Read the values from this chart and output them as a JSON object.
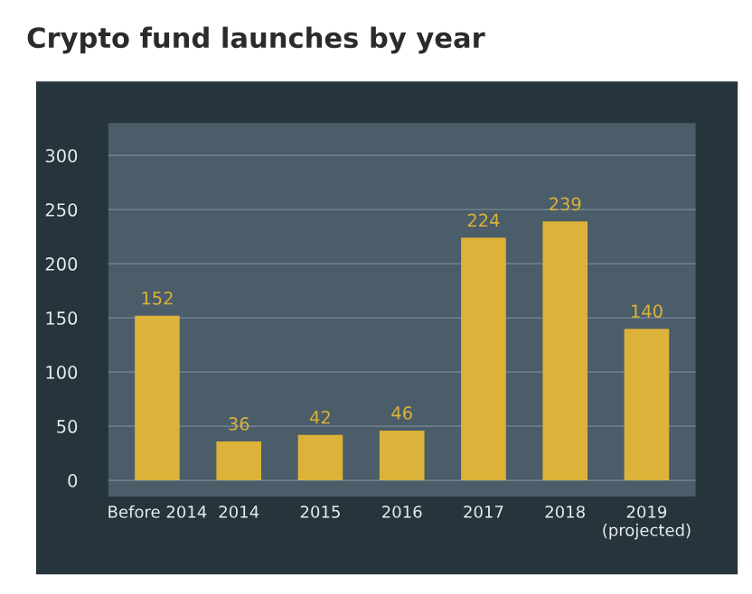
{
  "chart_data": {
    "type": "bar",
    "title": "Crypto fund launches by year",
    "categories": [
      "Before 2014",
      "2014",
      "2015",
      "2016",
      "2017",
      "2018",
      "2019\n(projected)"
    ],
    "values": [
      152,
      36,
      42,
      46,
      224,
      239,
      140
    ],
    "color": "#dcb23a",
    "ylim": [
      -15,
      330
    ],
    "yticks": [
      0,
      50,
      100,
      150,
      200,
      250,
      300
    ],
    "grid": "y",
    "data_labels": true
  }
}
